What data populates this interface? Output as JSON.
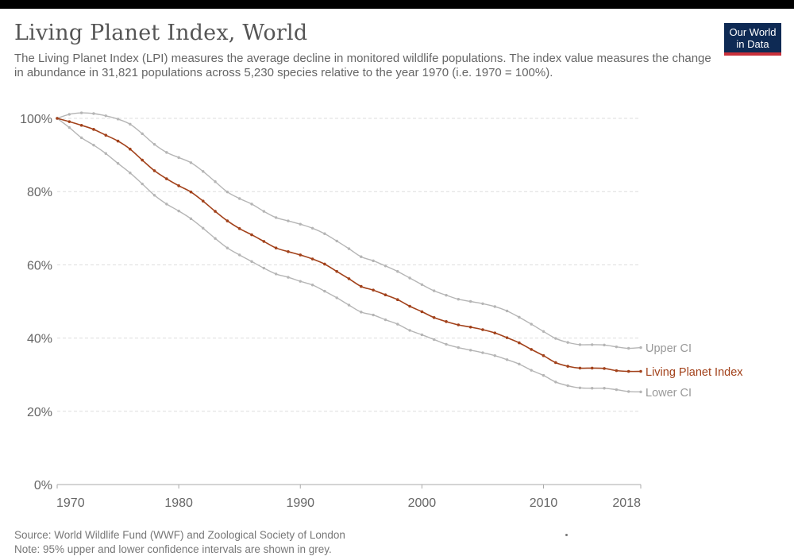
{
  "header": {
    "title": "Living Planet Index, World",
    "subtitle": "The Living Planet Index (LPI) measures the average decline in monitored wildlife populations. The index value measures the change in abundance in 31,821 populations across 5,230 species relative to the year 1970 (i.e. 1970 = 100%).",
    "logo_line1": "Our World",
    "logo_line2": "in Data"
  },
  "footer": {
    "source": "Source: World Wildlife Fund (WWF) and Zoological Society of London",
    "note": "Note: 95% upper and lower confidence intervals are shown in grey."
  },
  "colors": {
    "lpi": "#a2411a",
    "ci": "#b5b5b5",
    "axis": "#aaaaaa",
    "grid": "#dddddd",
    "tick_text": "#666666",
    "logo_bg": "#0e2a54",
    "logo_bar": "#c8303a"
  },
  "chart_data": {
    "type": "line",
    "title": "Living Planet Index, World",
    "xlabel": "",
    "ylabel": "",
    "xlim": [
      1970,
      2018
    ],
    "ylim": [
      0,
      100
    ],
    "x_ticks": [
      1970,
      1980,
      1990,
      2000,
      2010,
      2018
    ],
    "y_ticks": [
      0,
      20,
      40,
      60,
      80,
      100
    ],
    "y_tick_labels": [
      "0%",
      "20%",
      "40%",
      "60%",
      "80%",
      "100%"
    ],
    "grid": "horizontal dashed",
    "legend": "inline-right",
    "x": [
      1970,
      1971,
      1972,
      1973,
      1974,
      1975,
      1976,
      1977,
      1978,
      1979,
      1980,
      1981,
      1982,
      1983,
      1984,
      1985,
      1986,
      1987,
      1988,
      1989,
      1990,
      1991,
      1992,
      1993,
      1994,
      1995,
      1996,
      1997,
      1998,
      1999,
      2000,
      2001,
      2002,
      2003,
      2004,
      2005,
      2006,
      2007,
      2008,
      2009,
      2010,
      2011,
      2012,
      2013,
      2014,
      2015,
      2016,
      2017,
      2018
    ],
    "series": [
      {
        "name": "Upper CI",
        "label": "Upper CI",
        "values": [
          100,
          101.1,
          101.5,
          101.3,
          100.7,
          99.8,
          98.4,
          95.8,
          92.9,
          90.7,
          89.3,
          87.9,
          85.5,
          82.7,
          79.9,
          78.1,
          76.6,
          74.6,
          72.9,
          72.0,
          71.1,
          70.0,
          68.5,
          66.5,
          64.4,
          62.2,
          61.1,
          59.7,
          58.2,
          56.4,
          54.6,
          52.9,
          51.7,
          50.6,
          50.0,
          49.4,
          48.6,
          47.4,
          45.7,
          43.8,
          41.8,
          39.9,
          38.8,
          38.2,
          38.2,
          38.1,
          37.6,
          37.2,
          37.4
        ]
      },
      {
        "name": "Living Planet Index",
        "label": "Living Planet Index",
        "values": [
          100,
          99.1,
          98.1,
          97.0,
          95.4,
          93.8,
          91.6,
          88.6,
          85.7,
          83.5,
          81.6,
          79.9,
          77.4,
          74.6,
          72.0,
          69.9,
          68.2,
          66.4,
          64.6,
          63.6,
          62.7,
          61.6,
          60.2,
          58.2,
          56.2,
          54.1,
          53.1,
          51.8,
          50.5,
          48.7,
          47.2,
          45.6,
          44.5,
          43.6,
          43.0,
          42.3,
          41.4,
          40.1,
          38.7,
          36.9,
          35.2,
          33.3,
          32.3,
          31.8,
          31.8,
          31.7,
          31.1,
          30.9,
          30.9
        ]
      },
      {
        "name": "Lower CI",
        "label": "Lower CI",
        "values": [
          100,
          97.5,
          94.7,
          92.7,
          90.4,
          87.7,
          85.1,
          82.1,
          79.0,
          76.6,
          74.7,
          72.6,
          70.0,
          67.2,
          64.6,
          62.7,
          60.9,
          59.1,
          57.5,
          56.6,
          55.5,
          54.5,
          52.8,
          51.0,
          49.0,
          47.1,
          46.3,
          45.0,
          43.8,
          42.1,
          40.9,
          39.6,
          38.3,
          37.4,
          36.7,
          36.0,
          35.2,
          34.1,
          32.9,
          31.2,
          29.8,
          28.0,
          27.0,
          26.4,
          26.3,
          26.3,
          25.9,
          25.4,
          25.3
        ]
      }
    ]
  }
}
